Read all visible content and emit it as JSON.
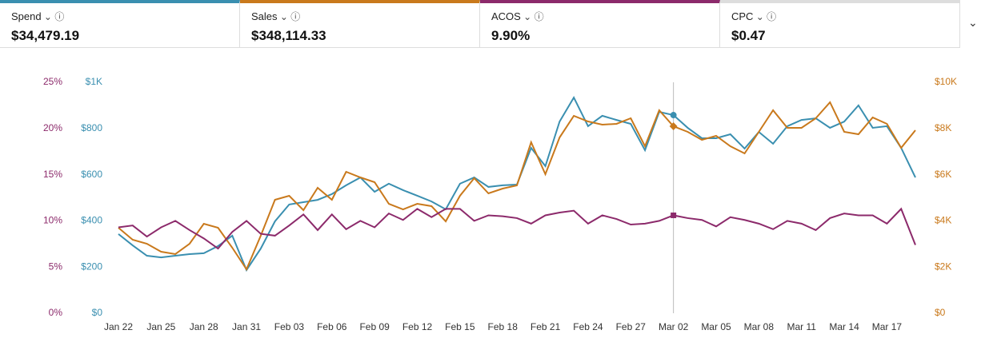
{
  "metrics": [
    {
      "name": "Spend",
      "value": "$34,479.19",
      "color": "#3a8fb0"
    },
    {
      "name": "Sales",
      "value": "$348,114.33",
      "color": "#c9791c"
    },
    {
      "name": "ACOS",
      "value": "9.90%",
      "color": "#8c2a6b"
    },
    {
      "name": "CPC",
      "value": "$0.47",
      "color": "#dddddd"
    }
  ],
  "chart_data": {
    "type": "line",
    "categories": [
      "Jan 22",
      null,
      null,
      "Jan 25",
      null,
      null,
      "Jan 28",
      null,
      null,
      "Jan 31",
      null,
      null,
      "Feb 03",
      null,
      null,
      "Feb 06",
      null,
      null,
      "Feb 09",
      null,
      null,
      "Feb 12",
      null,
      null,
      "Feb 15",
      null,
      null,
      "Feb 18",
      null,
      null,
      "Feb 21",
      null,
      null,
      "Feb 24",
      null,
      null,
      "Feb 27",
      null,
      null,
      "Mar 02",
      null,
      null,
      "Mar 05",
      null,
      null,
      "Mar 08",
      null,
      null,
      "Mar 11",
      null,
      null,
      "Mar 14",
      null,
      null,
      "Mar 17",
      null,
      null
    ],
    "ylim": [
      0,
      1000
    ],
    "yticks": [
      {
        "value": 0,
        "label": "$0"
      },
      {
        "value": 200,
        "label": "$200"
      },
      {
        "value": 400,
        "label": "$400"
      },
      {
        "value": 600,
        "label": "$600"
      },
      {
        "value": 800,
        "label": "$800"
      },
      {
        "value": 1000,
        "label": "$1K"
      }
    ],
    "y2lim": [
      0,
      10000
    ],
    "y2ticks": [
      {
        "value": 0,
        "label": "$0"
      },
      {
        "value": 2000,
        "label": "$2K"
      },
      {
        "value": 4000,
        "label": "$4K"
      },
      {
        "value": 6000,
        "label": "$6K"
      },
      {
        "value": 8000,
        "label": "$8K"
      },
      {
        "value": 10000,
        "label": "$10K"
      }
    ],
    "y3lim": [
      0,
      25
    ],
    "y3ticks": [
      {
        "value": 0,
        "label": "0%"
      },
      {
        "value": 5,
        "label": "5%"
      },
      {
        "value": 10,
        "label": "10%"
      },
      {
        "value": 15,
        "label": "15%"
      },
      {
        "value": 20,
        "label": "20%"
      },
      {
        "value": 25,
        "label": "25%"
      }
    ],
    "highlight_index": 39,
    "series": [
      {
        "name": "Spend",
        "color": "#3a8fb0",
        "axis": "y",
        "values": [
          343,
          294,
          249,
          242,
          249,
          256,
          260,
          291,
          336,
          187,
          280,
          398,
          471,
          481,
          491,
          516,
          554,
          588,
          526,
          561,
          533,
          509,
          484,
          450,
          561,
          588,
          547,
          554,
          557,
          716,
          637,
          830,
          934,
          810,
          855,
          837,
          820,
          706,
          872,
          858,
          803,
          758,
          758,
          775,
          713,
          785,
          734,
          810,
          837,
          844,
          803,
          830,
          900,
          803,
          810,
          716,
          588
        ]
      },
      {
        "name": "Sales",
        "color": "#c9791c",
        "axis": "y2",
        "values": [
          3702,
          3183,
          3010,
          2664,
          2561,
          3010,
          3875,
          3702,
          2837,
          1903,
          3356,
          4913,
          5087,
          4464,
          5433,
          4913,
          6125,
          5882,
          5675,
          4740,
          4498,
          4740,
          4637,
          3979,
          5087,
          5848,
          5190,
          5398,
          5536,
          7405,
          6021,
          7612,
          8547,
          8304,
          8166,
          8201,
          8443,
          7232,
          8789,
          8097,
          7855,
          7509,
          7682,
          7232,
          6920,
          7855,
          8789,
          8028,
          8028,
          8443,
          9135,
          7855,
          7751,
          8478,
          8201,
          7163,
          7924
        ]
      },
      {
        "name": "ACOS",
        "color": "#8c2a6b",
        "axis": "y3",
        "values": [
          9.3,
          9.5,
          8.3,
          9.3,
          10.0,
          9.0,
          8.1,
          7.0,
          8.8,
          10.0,
          8.6,
          8.4,
          9.5,
          10.7,
          9.0,
          10.7,
          9.1,
          10.0,
          9.3,
          10.8,
          10.1,
          11.3,
          10.4,
          11.3,
          11.3,
          10.0,
          10.6,
          10.5,
          10.3,
          9.7,
          10.6,
          10.9,
          11.1,
          9.7,
          10.6,
          10.2,
          9.6,
          9.7,
          10.0,
          10.6,
          10.3,
          10.1,
          9.4,
          10.4,
          10.1,
          9.7,
          9.1,
          10.0,
          9.7,
          9.0,
          10.3,
          10.8,
          10.6,
          10.6,
          9.7,
          11.3,
          7.4
        ]
      }
    ]
  }
}
